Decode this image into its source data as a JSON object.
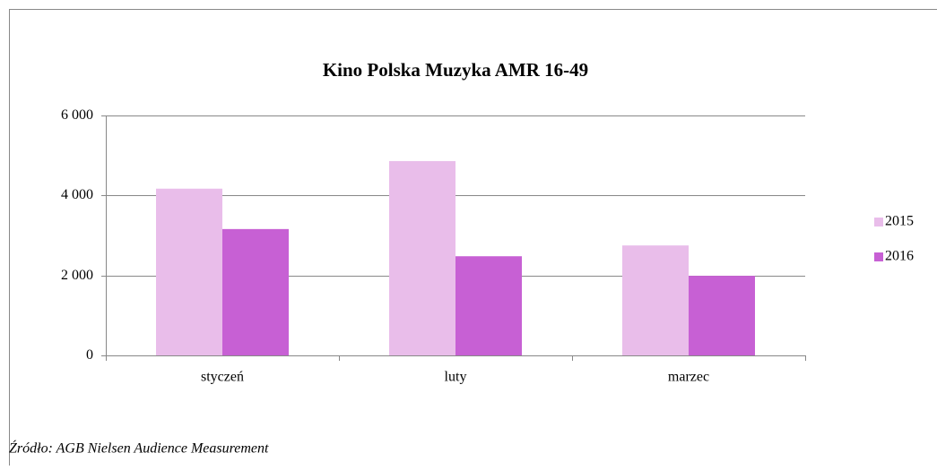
{
  "chart_data": {
    "type": "bar",
    "title": "Kino Polska Muzyka AMR 16-49",
    "categories": [
      "styczeń",
      "luty",
      "marzec"
    ],
    "series": [
      {
        "name": "2015",
        "color": "#e9bdea",
        "values": [
          4170,
          4860,
          2750
        ]
      },
      {
        "name": "2016",
        "color": "#c760d4",
        "values": [
          3160,
          2480,
          1990
        ]
      }
    ],
    "ylim": [
      0,
      6000
    ],
    "yticks": [
      0,
      {
        "value": 2000,
        "label": "2 000"
      },
      {
        "value": 4000,
        "label": "4 000"
      },
      {
        "value": 6000,
        "label": "6 000"
      }
    ],
    "grid": true,
    "legend": "right",
    "source": "Źródło: AGB Nielsen Audience Measurement"
  }
}
